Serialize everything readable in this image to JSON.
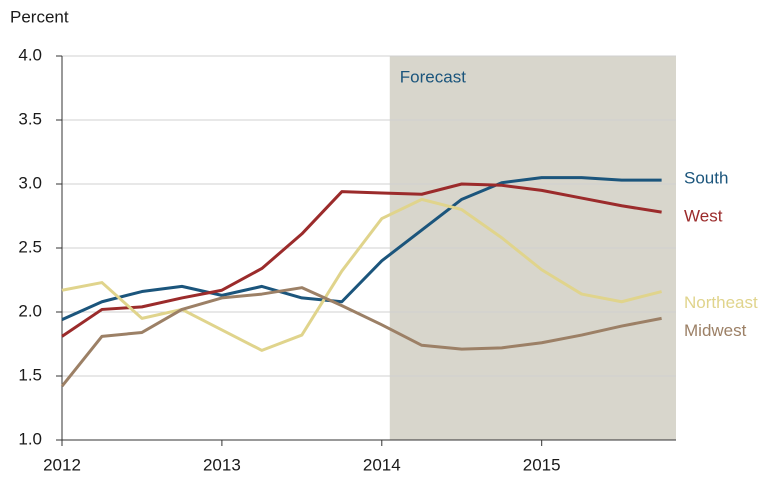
{
  "chart_data": {
    "type": "line",
    "y_label": "Percent",
    "x": [
      2012,
      2012.25,
      2012.5,
      2012.75,
      2013,
      2013.25,
      2013.5,
      2013.75,
      2014,
      2014.25,
      2014.5,
      2014.75,
      2015,
      2015.25,
      2015.5,
      2015.75
    ],
    "xlim": [
      2012,
      2015.84
    ],
    "xticks": [
      2012,
      2013,
      2014,
      2015
    ],
    "ylim": [
      1,
      4
    ],
    "yticks": [
      {
        "value": 1,
        "label": "1.0"
      },
      1.5,
      {
        "value": 2,
        "label": "2.0"
      },
      2.5,
      {
        "value": 3,
        "label": "3.0"
      },
      3.5,
      {
        "value": 4,
        "label": "4.0"
      }
    ],
    "grid": true,
    "forecast": {
      "label": "Forecast",
      "start": 2014.05,
      "color": "#d8d6cc"
    },
    "series": [
      {
        "name": "South",
        "color": "#1b557c",
        "values": [
          1.94,
          2.08,
          2.16,
          2.2,
          2.13,
          2.2,
          2.11,
          2.08,
          2.4,
          2.64,
          2.88,
          3.01,
          3.05,
          3.05,
          3.03,
          3.03
        ]
      },
      {
        "name": "West",
        "color": "#9b2b2b",
        "values": [
          1.81,
          2.02,
          2.04,
          2.11,
          2.17,
          2.34,
          2.61,
          2.94,
          2.93,
          2.92,
          3.0,
          2.99,
          2.95,
          2.89,
          2.83,
          2.78
        ]
      },
      {
        "name": "Northeast",
        "color": "#e0d48c",
        "values": [
          2.17,
          2.23,
          1.95,
          2.02,
          1.86,
          1.7,
          1.82,
          2.32,
          2.73,
          2.88,
          2.8,
          2.58,
          2.33,
          2.14,
          2.08,
          2.16
        ]
      },
      {
        "name": "Midwest",
        "color": "#9c8066",
        "values": [
          1.42,
          1.81,
          1.84,
          2.02,
          2.11,
          2.14,
          2.19,
          2.05,
          1.9,
          1.74,
          1.71,
          1.72,
          1.76,
          1.82,
          1.89,
          1.95
        ]
      }
    ]
  }
}
